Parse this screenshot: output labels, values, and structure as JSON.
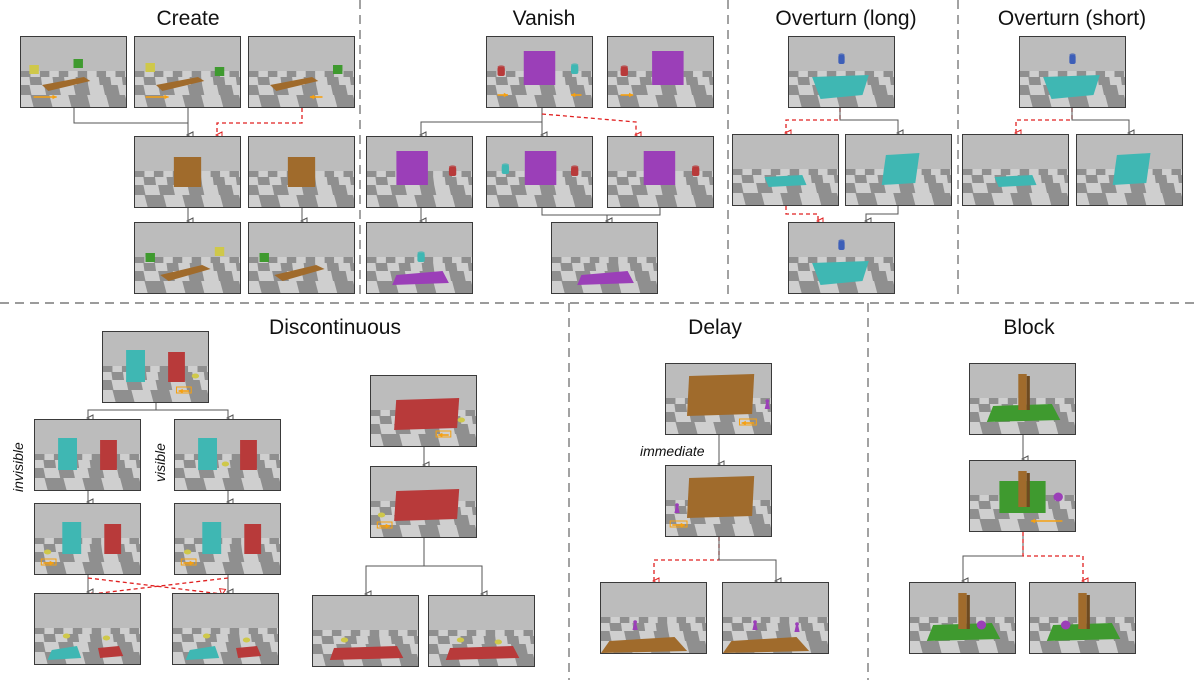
{
  "titles": {
    "create": "Create",
    "vanish": "Vanish",
    "overturn_long": "Overturn (long)",
    "overturn_short": "Overturn (short)",
    "discontinuous": "Discontinuous",
    "delay": "Delay",
    "block": "Block"
  },
  "labels": {
    "invisible": "invisible",
    "visible": "visible",
    "immediate": "immediate"
  },
  "colors": {
    "orange_arrow": "#f5a011",
    "red_dashed": "#e02020",
    "connector": "#555555",
    "divider": "#7a7a7a",
    "brown": "#a06b2c",
    "purple": "#9b3fb8",
    "teal": "#3fb7b3",
    "red_block": "#b83a3a",
    "green": "#3f9a2f",
    "yellow": "#cfc84a",
    "blue": "#3d5fb8"
  },
  "panel_types": [
    "create_scene",
    "brown_board_scene",
    "purple_wall_scene",
    "teal_plate_scene",
    "red_wall_scene",
    "brown_wall_scene",
    "green_plate_scene"
  ]
}
